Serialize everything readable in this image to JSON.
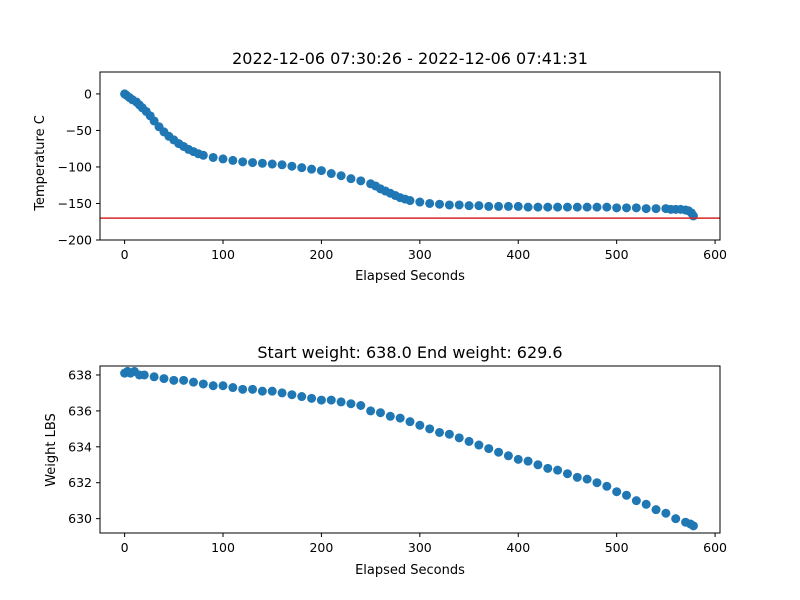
{
  "chart_data": [
    {
      "type": "scatter",
      "title": "2022-12-06 07:30:26 - 2022-12-06 07:41:31",
      "xlabel": "Elapsed Seconds",
      "ylabel": "Temperature C",
      "xlim": [
        -25,
        605
      ],
      "ylim": [
        -200,
        30
      ],
      "x_ticks": [
        0,
        100,
        200,
        300,
        400,
        500,
        600
      ],
      "y_ticks": [
        0,
        -50,
        -100,
        -150,
        -200
      ],
      "x_tick_labels": [
        "0",
        "100",
        "200",
        "300",
        "400",
        "500",
        "600"
      ],
      "y_tick_labels": [
        "0",
        "−50",
        "−100",
        "−150",
        "−200"
      ],
      "marker_color": "#1f77b4",
      "reference_line": {
        "y": -170,
        "color": "#d62728"
      },
      "series": [
        {
          "x": [
            0,
            2,
            5,
            8,
            12,
            15,
            18,
            22,
            26,
            30,
            35,
            40,
            45,
            50,
            55,
            60,
            65,
            70,
            75,
            80,
            90,
            100,
            110,
            120,
            130,
            140,
            150,
            160,
            170,
            180,
            190,
            200,
            210,
            220,
            230,
            240,
            250,
            255,
            260,
            265,
            270,
            275,
            280,
            285,
            290,
            300,
            310,
            320,
            330,
            340,
            350,
            360,
            370,
            380,
            390,
            400,
            410,
            420,
            430,
            440,
            450,
            460,
            470,
            480,
            490,
            500,
            510,
            520,
            530,
            540,
            550,
            555,
            560,
            565,
            570,
            573,
            576,
            578
          ],
          "y": [
            0,
            -2,
            -5,
            -8,
            -11,
            -15,
            -19,
            -24,
            -30,
            -37,
            -45,
            -52,
            -58,
            -63,
            -68,
            -72,
            -76,
            -79,
            -82,
            -84,
            -87,
            -89,
            -91,
            -93,
            -94,
            -95,
            -96,
            -97,
            -99,
            -101,
            -103,
            -105,
            -109,
            -112,
            -116,
            -119,
            -123,
            -126,
            -130,
            -133,
            -136,
            -139,
            -142,
            -144,
            -146,
            -148,
            -150,
            -151,
            -152,
            -152,
            -153,
            -153,
            -154,
            -154,
            -154,
            -154,
            -155,
            -155,
            -155,
            -155,
            -155,
            -155,
            -155,
            -155,
            -155,
            -156,
            -156,
            -156,
            -157,
            -157,
            -157,
            -158,
            -158,
            -158,
            -159,
            -160,
            -163,
            -167
          ]
        }
      ]
    },
    {
      "type": "scatter",
      "title": "Start weight: 638.0 End weight: 629.6",
      "xlabel": "Elapsed Seconds",
      "ylabel": "Weight LBS",
      "xlim": [
        -25,
        605
      ],
      "ylim": [
        629.2,
        638.5
      ],
      "x_ticks": [
        0,
        100,
        200,
        300,
        400,
        500,
        600
      ],
      "y_ticks": [
        630,
        632,
        634,
        636,
        638
      ],
      "x_tick_labels": [
        "0",
        "100",
        "200",
        "300",
        "400",
        "500",
        "600"
      ],
      "y_tick_labels": [
        "630",
        "632",
        "634",
        "636",
        "638"
      ],
      "marker_color": "#1f77b4",
      "series": [
        {
          "x": [
            0,
            3,
            6,
            10,
            15,
            20,
            30,
            40,
            50,
            60,
            70,
            80,
            90,
            100,
            110,
            120,
            130,
            140,
            150,
            160,
            170,
            180,
            190,
            200,
            210,
            220,
            230,
            240,
            250,
            260,
            270,
            280,
            290,
            300,
            310,
            320,
            330,
            340,
            350,
            360,
            370,
            380,
            390,
            400,
            410,
            420,
            430,
            440,
            450,
            460,
            470,
            480,
            490,
            500,
            510,
            520,
            530,
            540,
            550,
            560,
            570,
            575,
            578
          ],
          "y": [
            638.1,
            638.2,
            638.1,
            638.2,
            638.0,
            638.0,
            637.9,
            637.8,
            637.7,
            637.7,
            637.6,
            637.5,
            637.4,
            637.4,
            637.3,
            637.2,
            637.2,
            637.1,
            637.1,
            637.0,
            636.9,
            636.8,
            636.7,
            636.6,
            636.6,
            636.5,
            636.4,
            636.3,
            636.0,
            635.9,
            635.7,
            635.6,
            635.4,
            635.2,
            635.0,
            634.8,
            634.7,
            634.5,
            634.3,
            634.1,
            633.9,
            633.7,
            633.5,
            633.3,
            633.2,
            633.0,
            632.8,
            632.7,
            632.5,
            632.3,
            632.2,
            632.0,
            631.8,
            631.5,
            631.3,
            631.0,
            630.8,
            630.5,
            630.3,
            630.0,
            629.8,
            629.7,
            629.6
          ]
        }
      ]
    }
  ]
}
